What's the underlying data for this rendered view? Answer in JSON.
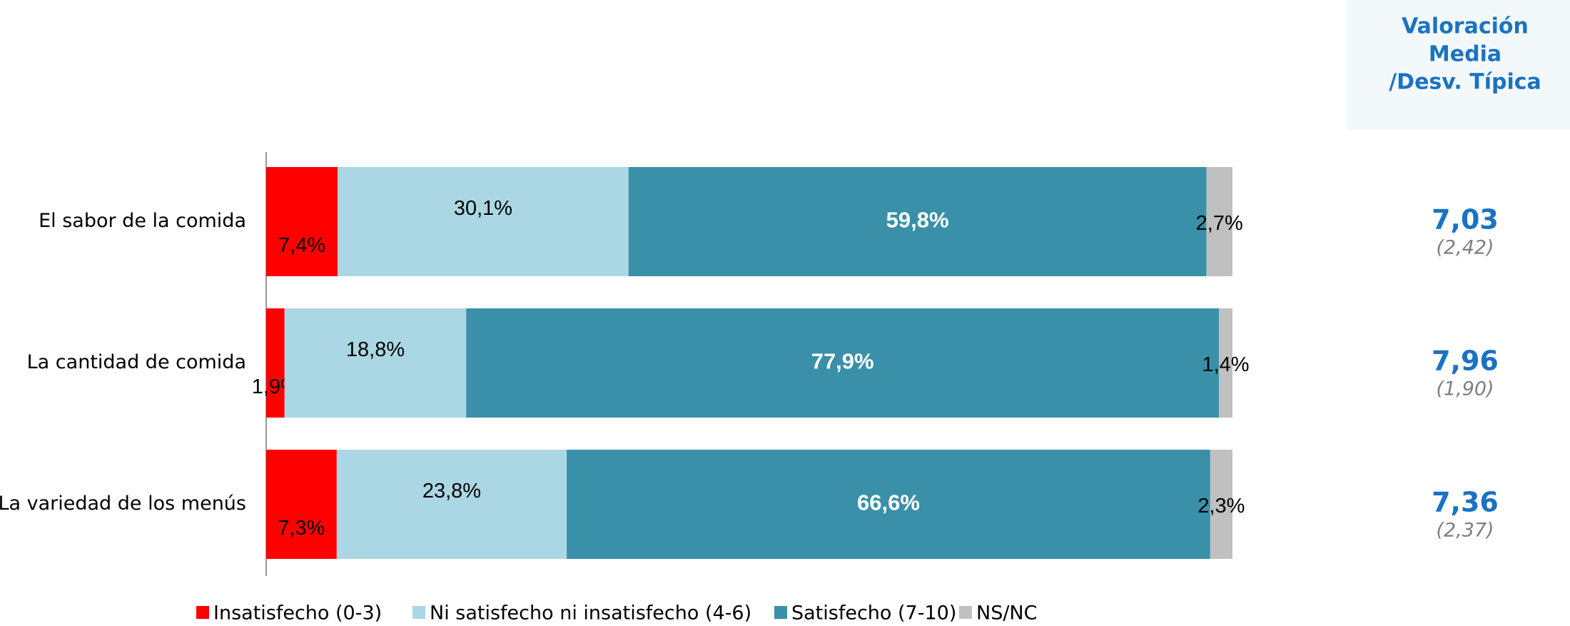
{
  "chart_data": {
    "type": "stacked_barh",
    "categories": [
      "El sabor de la comida",
      "La cantidad de comida",
      "La variedad de los menús"
    ],
    "xlim": [
      0,
      100
    ],
    "series": [
      {
        "name": "Insatisfecho (0-3)",
        "color": "#ff0000",
        "values": [
          7.4,
          1.9,
          7.3
        ],
        "value_labels": [
          "7,4%",
          "1,9%",
          "7,3%"
        ]
      },
      {
        "name": "Ni satisfecho ni insatisfecho (4-6)",
        "color": "#abd7e4",
        "values": [
          30.1,
          18.8,
          23.8
        ],
        "value_labels": [
          "30,1%",
          "18,8%",
          "23,8%"
        ]
      },
      {
        "name": "Satisfecho (7-10)",
        "color": "#3a90a8",
        "values": [
          59.8,
          77.9,
          66.6
        ],
        "value_labels": [
          "59,8%",
          "77,9%",
          "66,6%"
        ]
      },
      {
        "name": "NS/NC",
        "color": "#c0c0c0",
        "values": [
          2.7,
          1.4,
          2.3
        ],
        "value_labels": [
          "2,7%",
          "1,4%",
          "2,3%"
        ]
      }
    ],
    "legend": "bottom"
  },
  "panel": {
    "title_lines": [
      "Valoración",
      "Media",
      "/Desv. Típica"
    ],
    "means": [
      "7,03",
      "7,96",
      "7,36"
    ],
    "deviations": [
      "(2,42)",
      "(1,90)",
      "(2,37)"
    ]
  }
}
